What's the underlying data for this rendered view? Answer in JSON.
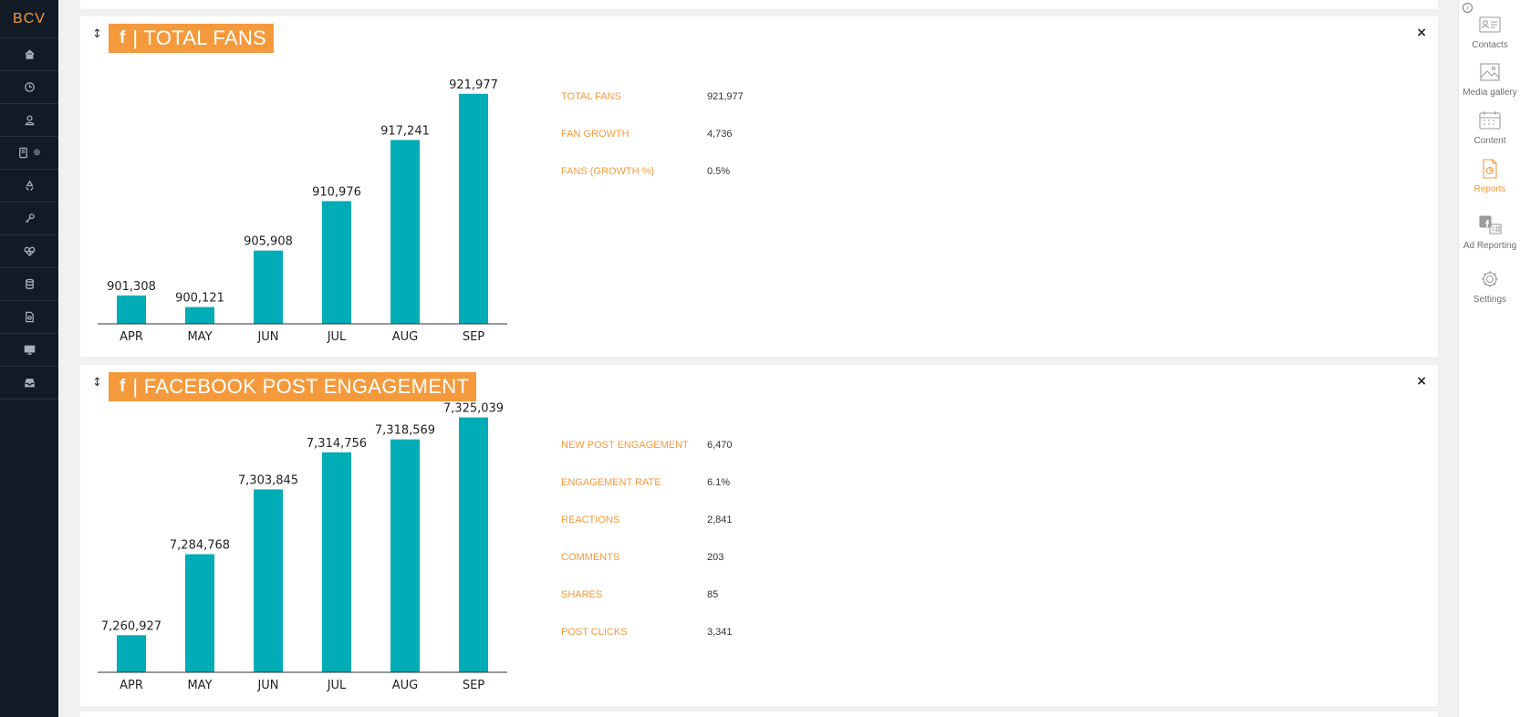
{
  "brand": "BCV",
  "left_nav": [
    {
      "icon": "home-icon"
    },
    {
      "icon": "clock-icon"
    },
    {
      "icon": "user-icon"
    },
    {
      "icon": "device-add-icon"
    },
    {
      "icon": "recycle-icon"
    },
    {
      "icon": "key-icon"
    },
    {
      "icon": "heart-pulse-icon"
    },
    {
      "icon": "database-icon"
    },
    {
      "icon": "document-icon"
    },
    {
      "icon": "monitor-icon"
    },
    {
      "icon": "inbox-icon"
    }
  ],
  "right_nav": [
    {
      "label": "Contacts",
      "icon": "contact-card-icon",
      "active": false
    },
    {
      "label": "Media gallery",
      "icon": "image-icon",
      "active": false
    },
    {
      "label": "Content",
      "icon": "calendar-icon",
      "active": false
    },
    {
      "label": "Reports",
      "icon": "report-icon",
      "active": true
    },
    {
      "label": "Ad Reporting",
      "icon": "facebook-ads-icon",
      "active": false
    },
    {
      "label": "Settings",
      "icon": "gear-icon",
      "active": false
    }
  ],
  "colors": {
    "accent": "#f59a3c",
    "bar": "#00acb5",
    "sidebar": "#121a26"
  },
  "cards": [
    {
      "fb_glyph": "f",
      "title": "| TOTAL FANS",
      "close": "×",
      "handle": "↕",
      "stats": [
        {
          "label": "TOTAL FANS",
          "value": "921,977"
        },
        {
          "label": "FAN GROWTH",
          "value": "4,736"
        },
        {
          "label": "FANS (GROWTH %)",
          "value": "0.5%"
        }
      ]
    },
    {
      "fb_glyph": "f",
      "title": "| FACEBOOK POST ENGAGEMENT",
      "close": "×",
      "handle": "↕",
      "stats": [
        {
          "label": "NEW POST ENGAGEMENT",
          "value": "6,470"
        },
        {
          "label": "ENGAGEMENT RATE",
          "value": "6.1%"
        },
        {
          "label": "REACTIONS",
          "value": "2,841"
        },
        {
          "label": "COMMENTS",
          "value": "203"
        },
        {
          "label": "SHARES",
          "value": "85"
        },
        {
          "label": "POST CLICKS",
          "value": "3,341"
        }
      ]
    }
  ],
  "chart_data": [
    {
      "type": "bar",
      "categories": [
        "APR",
        "MAY",
        "JUN",
        "JUL",
        "AUG",
        "SEP"
      ],
      "values": [
        901308,
        900121,
        905908,
        910976,
        917241,
        921977
      ],
      "data_labels": [
        "901,308",
        "900,121",
        "905,908",
        "910,976",
        "917,241",
        "921,977"
      ],
      "ylim": [
        898400,
        922800
      ],
      "grid": false
    },
    {
      "type": "bar",
      "categories": [
        "APR",
        "MAY",
        "JUN",
        "JUL",
        "AUG",
        "SEP"
      ],
      "values": [
        7260927,
        7284768,
        7303845,
        7314756,
        7318569,
        7325039
      ],
      "data_labels": [
        "7,260,927",
        "7,284,768",
        "7,303,845",
        "7,314,756",
        "7,318,569",
        "7,325,039"
      ],
      "ylim": [
        7250000,
        7326000
      ],
      "grid": false
    }
  ]
}
